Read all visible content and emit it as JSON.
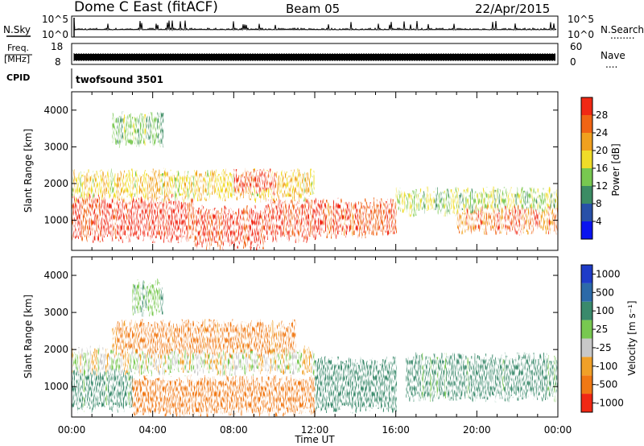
{
  "header": {
    "station": "Dome C East (fitACF)",
    "beam": "Beam 05",
    "date": "22/Apr/2015"
  },
  "noise_panel": {
    "left_label": "N.Sky",
    "left_ticks": [
      "10^5",
      "10^0"
    ],
    "right_ticks": [
      "10^5",
      "10^0"
    ],
    "right_label": "N.Search",
    "right_dots": "........"
  },
  "freq_panel": {
    "left_label_top": "Freq.",
    "left_label_unit": "[MHz]",
    "left_ticks": [
      "18",
      "8"
    ],
    "right_ticks": [
      "60",
      "0"
    ],
    "right_label": "Nave",
    "right_dots": "...."
  },
  "cpid_panel": {
    "label": "CPID",
    "program": "twofsound 3501"
  },
  "power_panel": {
    "ylabel": "Slant Range [km]",
    "yticks": [
      "1000",
      "2000",
      "3000",
      "4000"
    ],
    "colorbar_label": "Power [dB]",
    "colorbar_ticks": [
      "4",
      "8",
      "12",
      "16",
      "20",
      "24",
      "28"
    ],
    "colorbar_colors": [
      "#0a14f0",
      "#2850a8",
      "#3c8c64",
      "#78c850",
      "#f0dc28",
      "#f0a01e",
      "#f06414",
      "#f02814"
    ]
  },
  "velocity_panel": {
    "ylabel": "Slant Range [km]",
    "yticks": [
      "1000",
      "2000",
      "3000",
      "4000"
    ],
    "colorbar_label": "Velocity [m s⁻¹]",
    "colorbar_ticks": [
      "1000",
      "500",
      "100",
      "25",
      "-25",
      "-100",
      "-500",
      "-1000"
    ],
    "colorbar_colors": [
      "#1e3cc8",
      "#2c6aa8",
      "#3a8a6c",
      "#78c850",
      "#c8c8c8",
      "#f0a028",
      "#f07814",
      "#f02814"
    ]
  },
  "xaxis": {
    "label": "Time UT",
    "ticks": [
      "00:00",
      "04:00",
      "08:00",
      "12:00",
      "16:00",
      "20:00",
      "00:00"
    ]
  },
  "chart_data": [
    {
      "type": "heatmap",
      "title": "Power",
      "ylabel": "Slant Range [km]",
      "xlabel": "Time UT",
      "xlim": [
        0,
        24
      ],
      "ylim": [
        180,
        4500
      ],
      "colorbar": {
        "label": "Power [dB]",
        "ticks": [
          4,
          8,
          12,
          16,
          20,
          24,
          28
        ],
        "range": [
          0,
          30
        ]
      },
      "regions": [
        {
          "t_start": 0.0,
          "t_end": 1.5,
          "r_min": 500,
          "r_max": 1700,
          "value": 27
        },
        {
          "t_start": 1.5,
          "t_end": 6.0,
          "r_min": 500,
          "r_max": 1600,
          "value": 29
        },
        {
          "t_start": 6.0,
          "t_end": 9.5,
          "r_min": 300,
          "r_max": 1300,
          "value": 28
        },
        {
          "t_start": 9.5,
          "t_end": 12.0,
          "r_min": 500,
          "r_max": 1500,
          "value": 27
        },
        {
          "t_start": 12.0,
          "t_end": 16.0,
          "r_min": 600,
          "r_max": 1500,
          "value": 26
        },
        {
          "t_start": 0.0,
          "t_end": 12.0,
          "r_min": 1600,
          "r_max": 2300,
          "value": 18
        },
        {
          "t_start": 16.0,
          "t_end": 24.0,
          "r_min": 1200,
          "r_max": 1800,
          "value": 14
        },
        {
          "t_start": 19.0,
          "t_end": 24.0,
          "r_min": 700,
          "r_max": 1300,
          "value": 24
        },
        {
          "t_start": 2.0,
          "t_end": 4.5,
          "r_min": 3100,
          "r_max": 3900,
          "value": 12
        },
        {
          "t_start": 8.0,
          "t_end": 10.0,
          "r_min": 1800,
          "r_max": 2300,
          "value": 28
        }
      ]
    },
    {
      "type": "heatmap",
      "title": "Velocity",
      "ylabel": "Slant Range [km]",
      "xlabel": "Time UT",
      "xlim": [
        0,
        24
      ],
      "ylim": [
        180,
        4500
      ],
      "colorbar": {
        "label": "Velocity [m s⁻¹]",
        "ticks": [
          1000,
          500,
          100,
          25,
          -25,
          -100,
          -500,
          -1000
        ]
      },
      "regions": [
        {
          "t_start": 0.0,
          "t_end": 3.0,
          "r_min": 400,
          "r_max": 1600,
          "value": 150
        },
        {
          "t_start": 3.0,
          "t_end": 12.0,
          "r_min": 300,
          "r_max": 1200,
          "value": -200
        },
        {
          "t_start": 0.0,
          "t_end": 12.0,
          "r_min": 1400,
          "r_max": 2000,
          "value": 0
        },
        {
          "t_start": 2.0,
          "t_end": 11.0,
          "r_min": 1900,
          "r_max": 2700,
          "value": -150
        },
        {
          "t_start": 12.0,
          "t_end": 16.0,
          "r_min": 400,
          "r_max": 1700,
          "value": 200
        },
        {
          "t_start": 16.5,
          "t_end": 24.0,
          "r_min": 700,
          "r_max": 1800,
          "value": 150
        },
        {
          "t_start": 3.0,
          "t_end": 4.5,
          "r_min": 3000,
          "r_max": 3800,
          "value": 80
        }
      ]
    }
  ]
}
